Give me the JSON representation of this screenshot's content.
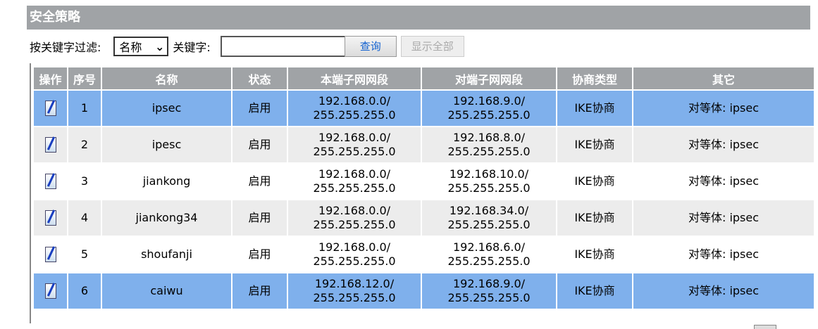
{
  "title": "安全策略",
  "filter": {
    "label": "按关键字过滤:",
    "select_value": "名称",
    "keyword_label": "关键字:",
    "keyword_value": "",
    "query_button": "查询",
    "show_all_button": "显示全部"
  },
  "table": {
    "headers": [
      "操作",
      "序号",
      "名称",
      "状态",
      "本端子网网段",
      "对端子网网段",
      "协商类型",
      "其它"
    ],
    "rows": [
      {
        "index": "1",
        "name": "ipsec",
        "status": "启用",
        "local": "192.168.0.0/",
        "local_mask": "255.255.255.0",
        "remote": "192.168.9.0/",
        "remote_mask": "255.255.255.0",
        "type": "IKE协商",
        "other": "对等体: ipsec",
        "highlight": "blue"
      },
      {
        "index": "2",
        "name": "ipesc",
        "status": "启用",
        "local": "192.168.0.0/",
        "local_mask": "255.255.255.0",
        "remote": "192.168.8.0/",
        "remote_mask": "255.255.255.0",
        "type": "IKE协商",
        "other": "对等体: ipsec",
        "highlight": "gray"
      },
      {
        "index": "3",
        "name": "jiankong",
        "status": "启用",
        "local": "192.168.0.0/",
        "local_mask": "255.255.255.0",
        "remote": "192.168.10.0/",
        "remote_mask": "255.255.255.0",
        "type": "IKE协商",
        "other": "对等体: ipsec",
        "highlight": "white"
      },
      {
        "index": "4",
        "name": "jiankong34",
        "status": "启用",
        "local": "192.168.0.0/",
        "local_mask": "255.255.255.0",
        "remote": "192.168.34.0/",
        "remote_mask": "255.255.255.0",
        "type": "IKE协商",
        "other": "对等体: ipsec",
        "highlight": "gray"
      },
      {
        "index": "5",
        "name": "shoufanji",
        "status": "启用",
        "local": "192.168.0.0/",
        "local_mask": "255.255.255.0",
        "remote": "192.168.6.0/",
        "remote_mask": "255.255.255.0",
        "type": "IKE协商",
        "other": "对等体: ipsec",
        "highlight": "white"
      },
      {
        "index": "6",
        "name": "caiwu",
        "status": "启用",
        "local": "192.168.12.0/",
        "local_mask": "255.255.255.0",
        "remote": "192.168.9.0/",
        "remote_mask": "255.255.255.0",
        "type": "IKE协商",
        "other": "对等体: ipsec",
        "highlight": "blue"
      }
    ]
  },
  "colors": {
    "header": "#a0a3a6",
    "selected_row": "#7fb0ec",
    "alt_row": "#ececec"
  },
  "icons": {
    "edit": "edit-notepad-icon"
  }
}
